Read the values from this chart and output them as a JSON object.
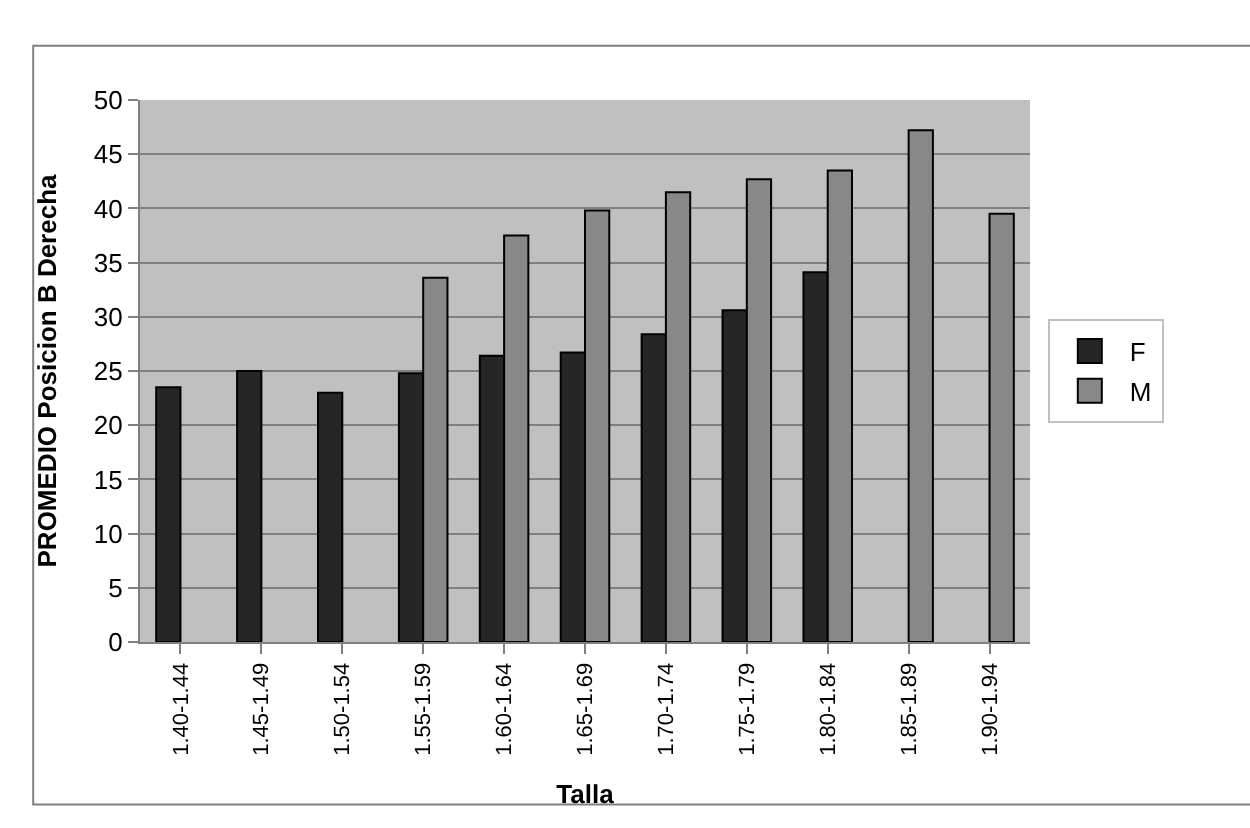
{
  "chart_data": {
    "type": "bar",
    "xlabel": "Talla",
    "ylabel": "PROMEDIO Posicion B Derecha",
    "categories": [
      "1.40-1.44",
      "1.45-1.49",
      "1.50-1.54",
      "1.55-1.59",
      "1.60-1.64",
      "1.65-1.69",
      "1.70-1.74",
      "1.75-1.79",
      "1.80-1.84",
      "1.85-1.89",
      "1.90-1.94"
    ],
    "series": [
      {
        "name": "F",
        "color": "#262626",
        "values": [
          23.5,
          25,
          23,
          24.8,
          26.4,
          26.7,
          28.4,
          30.6,
          34.1,
          null,
          null
        ]
      },
      {
        "name": "M",
        "color": "#888888",
        "values": [
          null,
          null,
          null,
          33.6,
          37.5,
          39.8,
          41.5,
          42.7,
          43.5,
          47.2,
          39.5
        ]
      }
    ],
    "ylim": [
      0,
      50
    ],
    "yticks": [
      0,
      5,
      10,
      15,
      20,
      25,
      30,
      35,
      40,
      45,
      50
    ],
    "grid": "y",
    "legend": "right"
  }
}
